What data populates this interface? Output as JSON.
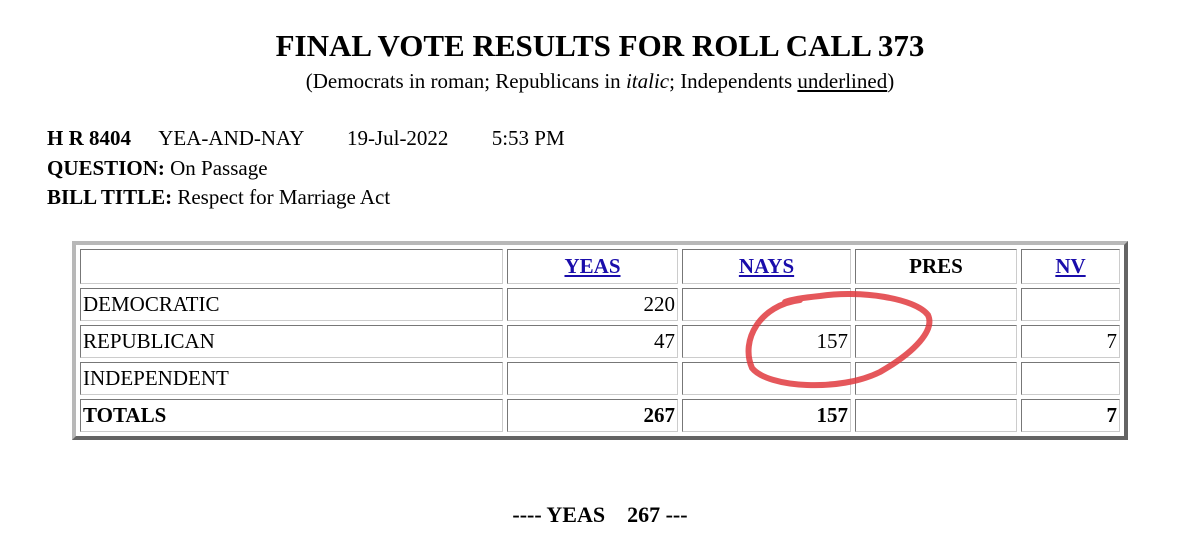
{
  "header": {
    "title": "FINAL VOTE RESULTS FOR ROLL CALL 373",
    "subtitle": [
      "(Democrats in roman; Republicans in ",
      "italic",
      "; Independents ",
      "underlined",
      ")"
    ]
  },
  "info": {
    "bill": "H R 8404",
    "vote_type": "YEA-AND-NAY",
    "date": "19-Jul-2022",
    "time": "5:53 PM",
    "question_label": "QUESTION:",
    "question": "On Passage",
    "bill_title_label": "BILL TITLE:",
    "bill_title": "Respect for Marriage Act"
  },
  "table": {
    "columns": [
      "YEAS",
      "NAYS",
      "PRES",
      "NV"
    ],
    "rows": [
      {
        "label": "DEMOCRATIC",
        "cells": [
          220,
          null,
          null,
          null
        ]
      },
      {
        "label": "REPUBLICAN",
        "cells": [
          47,
          157,
          null,
          7
        ]
      },
      {
        "label": "INDEPENDENT",
        "cells": [
          null,
          null,
          null,
          null
        ]
      },
      {
        "label": "TOTALS",
        "cells": [
          267,
          157,
          null,
          7
        ]
      }
    ]
  },
  "footer": {
    "label": "---- YEAS",
    "value": 267,
    "suffix": "---"
  }
}
